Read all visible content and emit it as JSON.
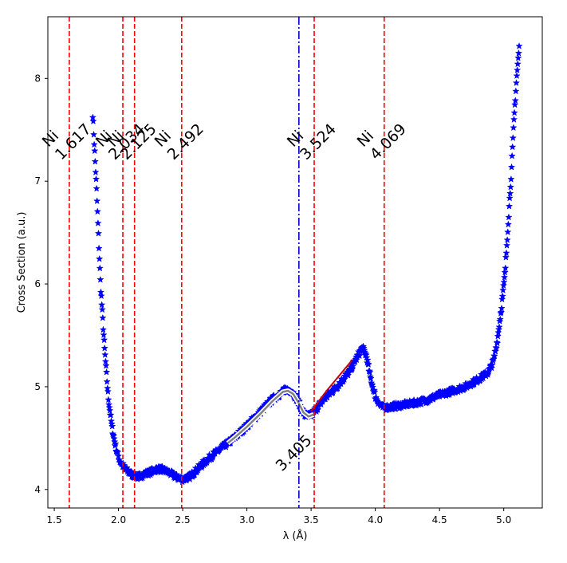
{
  "chart_data": {
    "type": "scatter",
    "title": "",
    "xlabel": "λ (Å)",
    "ylabel": "Cross Section (a.u.)",
    "xlim": [
      1.45,
      5.3
    ],
    "ylim": [
      3.82,
      8.6
    ],
    "xticks": [
      1.5,
      2.0,
      2.5,
      3.0,
      3.5,
      4.0,
      4.5,
      5.0
    ],
    "xtick_labels": [
      "1.5",
      "2.0",
      "2.5",
      "3.0",
      "3.5",
      "4.0",
      "4.5",
      "5.0"
    ],
    "yticks": [
      4,
      5,
      6,
      7,
      8
    ],
    "ytick_labels": [
      "4",
      "5",
      "6",
      "7",
      "8"
    ],
    "grid": false,
    "legend": "none",
    "marker": "star",
    "colors": {
      "points": "#0000ff",
      "bragg_edges": "#ff0000",
      "fitted_edge": "#0000cc",
      "fit_curve_outline": "#ffffff",
      "fit_curve_core": "#808080",
      "fit_segment": "#cc0000"
    },
    "bragg_edges": [
      {
        "x": 1.617,
        "element": "Ni",
        "value": "1.617"
      },
      {
        "x": 2.034,
        "element": "Ni",
        "value": "2.034"
      },
      {
        "x": 2.125,
        "element": "Ni",
        "value": "2.125"
      },
      {
        "x": 2.492,
        "element": "Ni",
        "value": "2.492"
      },
      {
        "x": 3.524,
        "element": "Ni",
        "value": "3.524"
      },
      {
        "x": 4.069,
        "element": "Ni",
        "value": "4.069"
      }
    ],
    "fitted_edge": {
      "x": 3.405,
      "label": "3.405"
    },
    "profile": [
      [
        1.8,
        7.65
      ],
      [
        1.83,
        6.9
      ],
      [
        1.86,
        6.0
      ],
      [
        1.89,
        5.4
      ],
      [
        1.92,
        4.9
      ],
      [
        1.95,
        4.6
      ],
      [
        1.98,
        4.4
      ],
      [
        2.01,
        4.28
      ],
      [
        2.05,
        4.2
      ],
      [
        2.1,
        4.15
      ],
      [
        2.15,
        4.12
      ],
      [
        2.2,
        4.15
      ],
      [
        2.25,
        4.17
      ],
      [
        2.3,
        4.2
      ],
      [
        2.35,
        4.19
      ],
      [
        2.4,
        4.16
      ],
      [
        2.45,
        4.12
      ],
      [
        2.5,
        4.1
      ],
      [
        2.55,
        4.12
      ],
      [
        2.6,
        4.18
      ],
      [
        2.7,
        4.3
      ],
      [
        2.8,
        4.4
      ],
      [
        2.9,
        4.5
      ],
      [
        3.0,
        4.62
      ],
      [
        3.1,
        4.75
      ],
      [
        3.2,
        4.88
      ],
      [
        3.3,
        4.97
      ],
      [
        3.35,
        4.96
      ],
      [
        3.4,
        4.85
      ],
      [
        3.45,
        4.72
      ],
      [
        3.5,
        4.72
      ],
      [
        3.55,
        4.8
      ],
      [
        3.6,
        4.88
      ],
      [
        3.7,
        5.0
      ],
      [
        3.8,
        5.15
      ],
      [
        3.85,
        5.27
      ],
      [
        3.9,
        5.38
      ],
      [
        3.93,
        5.3
      ],
      [
        3.96,
        5.1
      ],
      [
        4.0,
        4.9
      ],
      [
        4.05,
        4.8
      ],
      [
        4.1,
        4.8
      ],
      [
        4.2,
        4.82
      ],
      [
        4.3,
        4.84
      ],
      [
        4.4,
        4.87
      ],
      [
        4.5,
        4.92
      ],
      [
        4.6,
        4.96
      ],
      [
        4.7,
        5.0
      ],
      [
        4.8,
        5.07
      ],
      [
        4.88,
        5.14
      ],
      [
        4.92,
        5.25
      ],
      [
        4.95,
        5.45
      ],
      [
        4.98,
        5.75
      ],
      [
        5.01,
        6.1
      ],
      [
        5.04,
        6.7
      ],
      [
        5.06,
        7.1
      ],
      [
        5.08,
        7.6
      ],
      [
        5.1,
        8.0
      ],
      [
        5.12,
        8.3
      ]
    ],
    "fit_curve": [
      [
        2.85,
        4.45
      ],
      [
        2.9,
        4.5
      ],
      [
        3.0,
        4.61
      ],
      [
        3.1,
        4.73
      ],
      [
        3.2,
        4.86
      ],
      [
        3.28,
        4.95
      ],
      [
        3.32,
        4.96
      ],
      [
        3.36,
        4.93
      ],
      [
        3.4,
        4.85
      ],
      [
        3.44,
        4.75
      ],
      [
        3.48,
        4.71
      ],
      [
        3.52,
        4.73
      ]
    ],
    "fit_segment": [
      [
        3.5,
        4.76
      ],
      [
        3.62,
        4.96
      ],
      [
        3.82,
        5.26
      ]
    ]
  }
}
